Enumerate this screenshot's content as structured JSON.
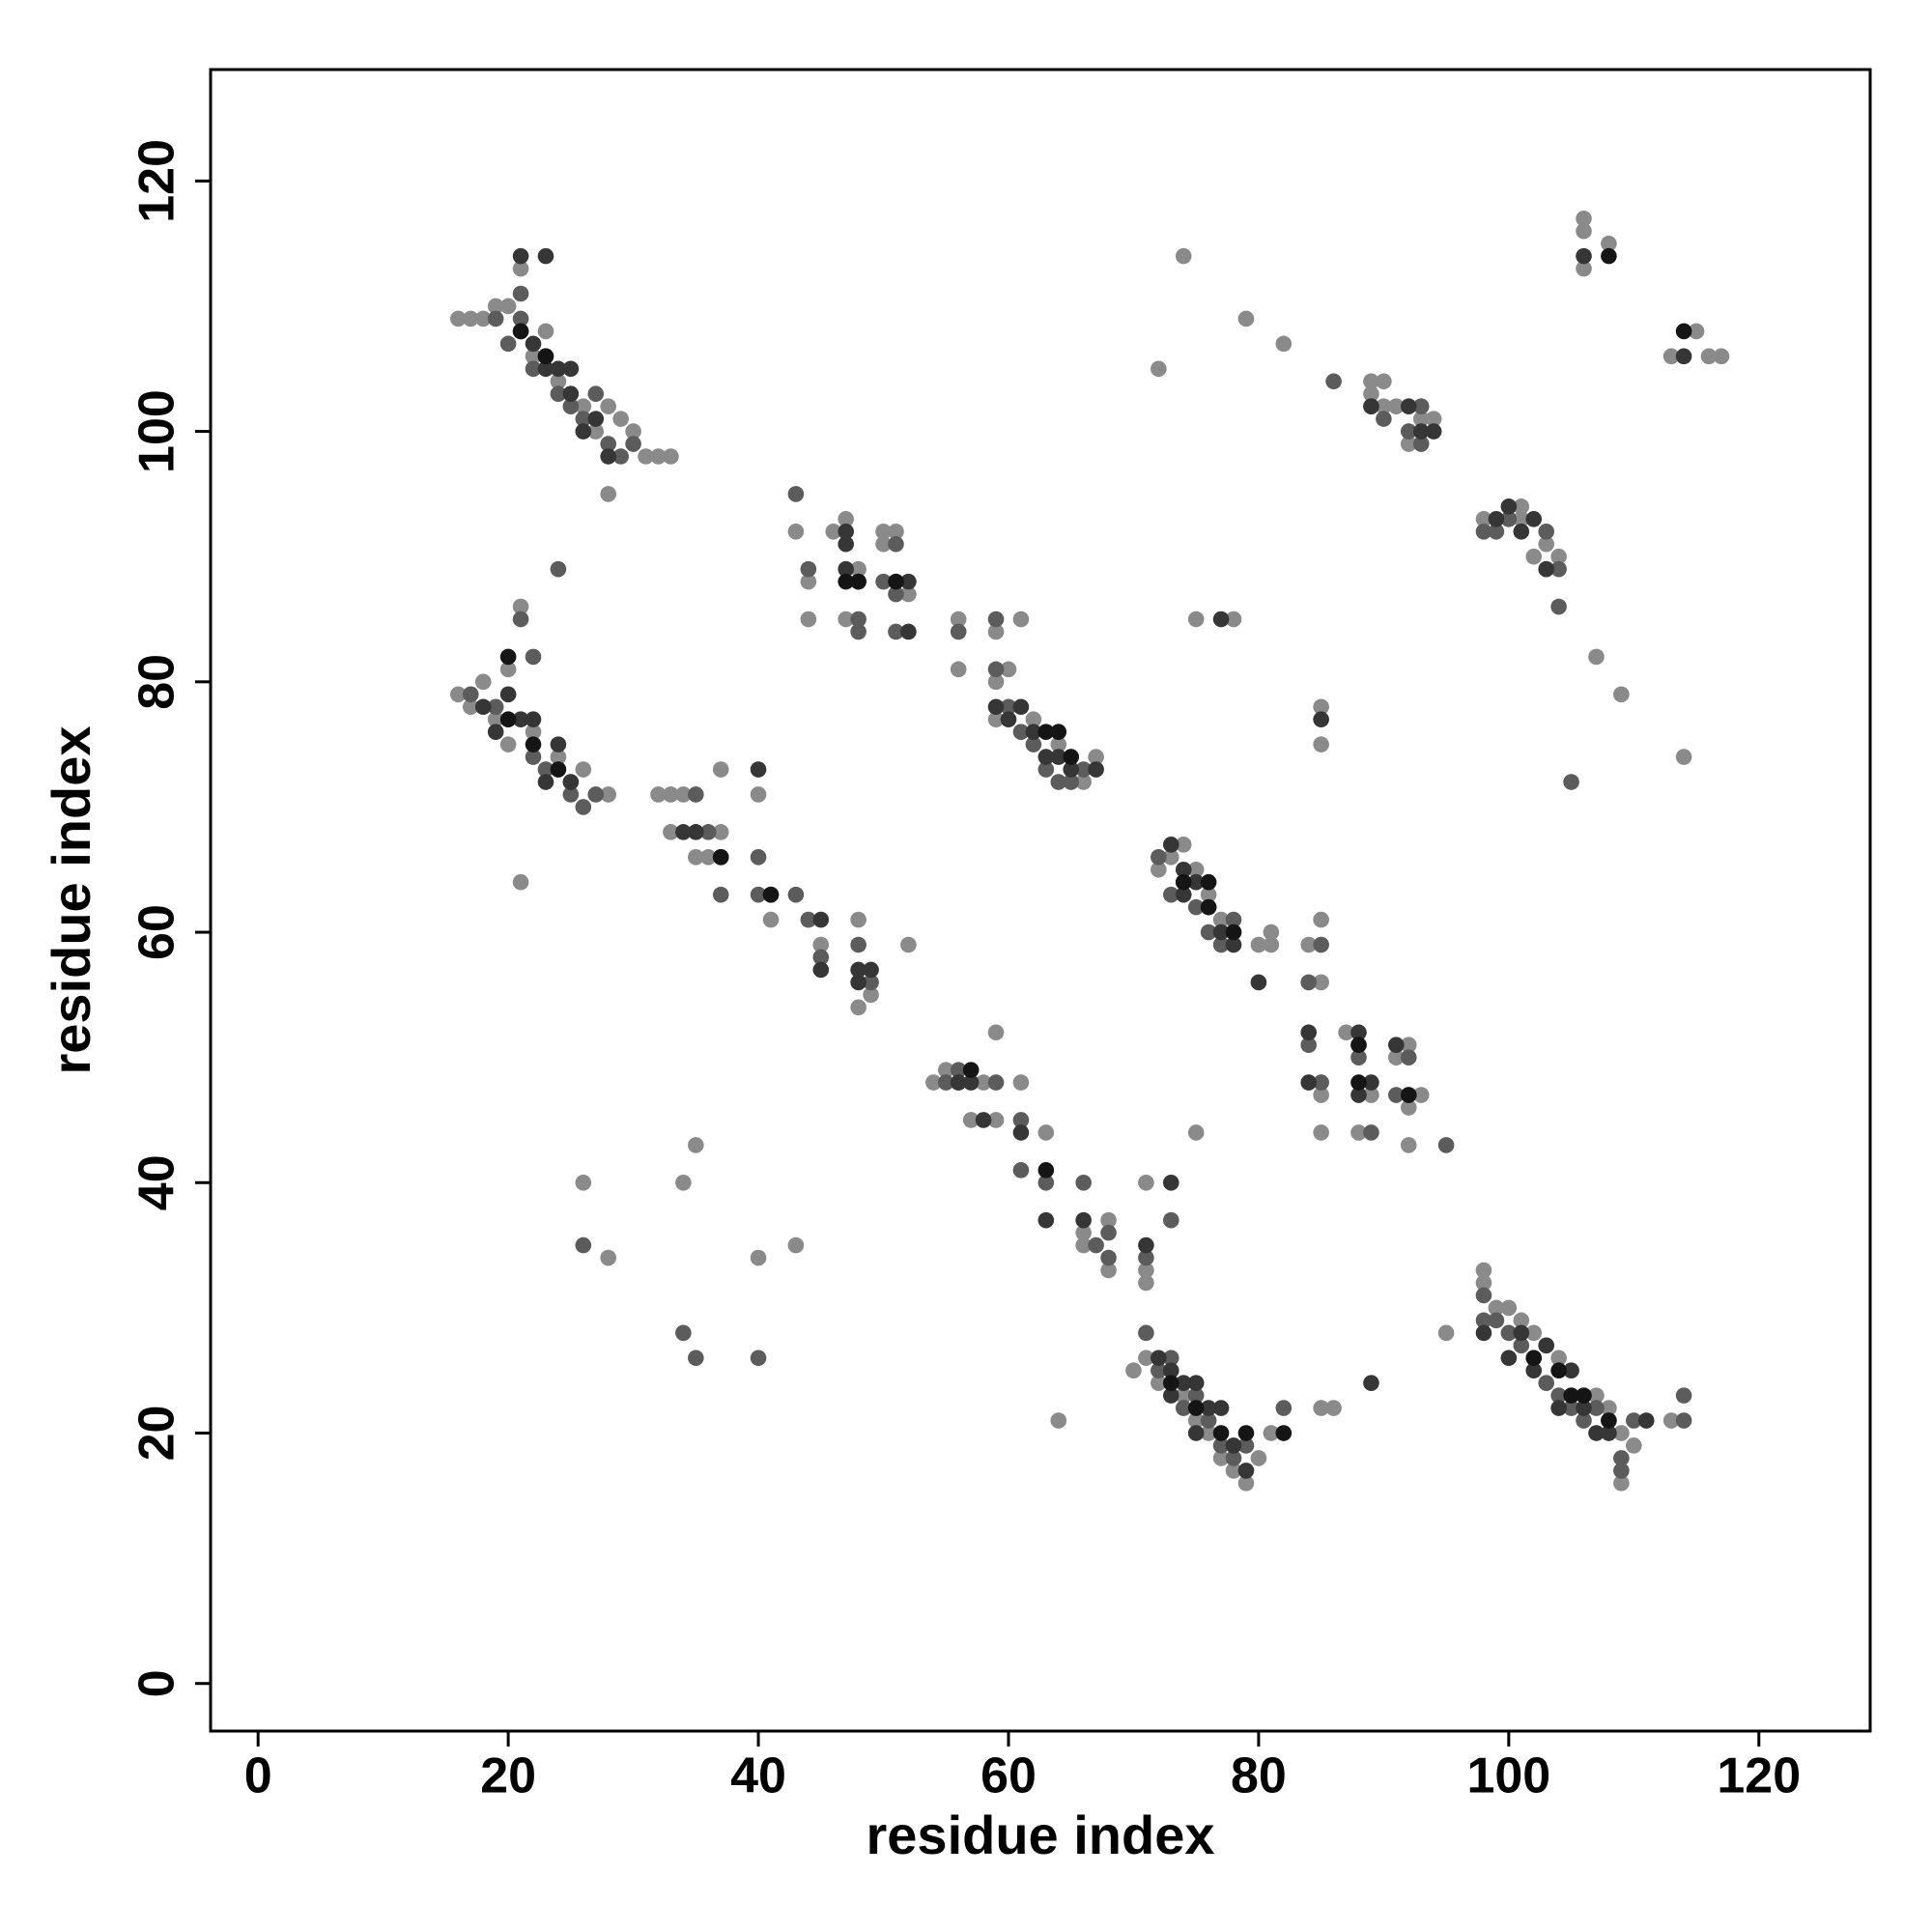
{
  "chart_data": {
    "type": "scatter",
    "xlabel": "residue index",
    "ylabel": "residue index",
    "xlim": [
      -3.8,
      128.9
    ],
    "ylim": [
      -3.8,
      128.9
    ],
    "xticks": [
      0,
      20,
      40,
      60,
      80,
      100,
      120
    ],
    "yticks": [
      0,
      20,
      40,
      60,
      80,
      100,
      120
    ],
    "grid": false,
    "series": [
      {
        "color": "#8a8a8a",
        "x": [
          16,
          17,
          18,
          19,
          20,
          21,
          22,
          23,
          24,
          26,
          27,
          28,
          29,
          30,
          31,
          32,
          33,
          28,
          16,
          17,
          18,
          19,
          20,
          20,
          21,
          22,
          24,
          25,
          26,
          28,
          21,
          32,
          33,
          34,
          33,
          35,
          36,
          37,
          37,
          40,
          41,
          45,
          48,
          48,
          49,
          52,
          43,
          44,
          46,
          47,
          47,
          48,
          50,
          50,
          51,
          52,
          44,
          56,
          56,
          59,
          59,
          60,
          61,
          59,
          62,
          64,
          65,
          66,
          67,
          54,
          55,
          56,
          57,
          57,
          58,
          59,
          59,
          61,
          63,
          66,
          66,
          68,
          68,
          71,
          71,
          71,
          70,
          71,
          72,
          74,
          75,
          76,
          77,
          78,
          79,
          80,
          81,
          64,
          72,
          73,
          74,
          75,
          76,
          77,
          78,
          80,
          81,
          81,
          84,
          85,
          85,
          85,
          87,
          88,
          89,
          91,
          92,
          92,
          92,
          93,
          85,
          89,
          90,
          89,
          90,
          91,
          92,
          93,
          94,
          98,
          101,
          101,
          102,
          103,
          103,
          104,
          107,
          109,
          98,
          98,
          99,
          100,
          101,
          102,
          103,
          104,
          106,
          107,
          108,
          109,
          109,
          110,
          113,
          95,
          72,
          74,
          75,
          78,
          79,
          82,
          85,
          85,
          106,
          106,
          106,
          108,
          113,
          115,
          116,
          117,
          114,
          26,
          28,
          34,
          35,
          40,
          43,
          85,
          86,
          75
        ],
        "values": [
          109,
          109,
          109,
          110,
          110,
          113,
          106,
          108,
          104,
          102,
          100,
          102,
          101,
          100,
          98,
          98,
          98,
          95,
          79,
          78,
          80,
          77,
          75,
          81,
          86,
          76,
          74,
          72,
          73,
          71,
          64,
          71,
          71,
          71,
          68,
          66,
          66,
          68,
          73,
          71,
          61,
          59,
          61,
          54,
          55,
          59,
          92,
          85,
          92,
          93,
          85,
          89,
          92,
          91,
          92,
          87,
          88,
          85,
          81,
          84,
          80,
          81,
          85,
          77,
          77,
          75,
          74,
          72,
          74,
          48,
          49,
          48,
          49,
          45,
          48,
          52,
          45,
          48,
          44,
          35,
          36,
          37,
          33,
          32,
          33,
          40,
          25,
          26,
          24,
          23,
          21,
          20,
          18,
          17,
          16,
          18,
          20,
          21,
          65,
          66,
          67,
          65,
          63,
          61,
          60,
          59,
          60,
          59,
          59,
          56,
          61,
          44,
          52,
          44,
          47,
          50,
          51,
          46,
          43,
          47,
          47,
          104,
          104,
          103,
          102,
          102,
          99,
          101,
          101,
          93,
          93,
          94,
          90,
          91,
          89,
          90,
          82,
          79,
          33,
          32,
          30,
          30,
          29,
          28,
          27,
          26,
          23,
          23,
          22,
          16,
          20,
          19,
          21,
          28,
          105,
          114,
          85,
          85,
          109,
          107,
          78,
          75,
          117,
          116,
          113,
          115,
          106,
          108,
          106,
          106,
          74,
          40,
          34,
          40,
          43,
          34,
          35,
          22,
          22,
          44
        ]
      },
      {
        "color": "#5c5c5c",
        "x": [
          19,
          20,
          21,
          21,
          22,
          24,
          25,
          26,
          27,
          28,
          29,
          30,
          17,
          19,
          21,
          22,
          22,
          23,
          24,
          25,
          26,
          27,
          35,
          36,
          37,
          40,
          40,
          43,
          44,
          45,
          48,
          49,
          43,
          44,
          48,
          48,
          50,
          51,
          51,
          51,
          56,
          59,
          59,
          60,
          61,
          62,
          63,
          64,
          65,
          66,
          55,
          56,
          59,
          61,
          61,
          63,
          66,
          67,
          68,
          68,
          71,
          73,
          71,
          72,
          73,
          74,
          75,
          76,
          77,
          78,
          79,
          82,
          72,
          73,
          74,
          75,
          76,
          77,
          78,
          84,
          85,
          84,
          85,
          88,
          88,
          89,
          91,
          92,
          95,
          89,
          90,
          92,
          93,
          93,
          86,
          98,
          99,
          100,
          103,
          104,
          104,
          105,
          98,
          98,
          99,
          100,
          101,
          102,
          103,
          104,
          105,
          106,
          107,
          108,
          109,
          109,
          110,
          114,
          114,
          34,
          35,
          40,
          26
        ],
        "values": [
          109,
          107,
          111,
          109,
          105,
          103,
          102,
          101,
          103,
          99,
          98,
          99,
          79,
          78,
          85,
          82,
          74,
          73,
          89,
          71,
          70,
          71,
          71,
          68,
          63,
          66,
          63,
          63,
          61,
          58,
          59,
          56,
          95,
          89,
          85,
          84,
          88,
          91,
          87,
          84,
          84,
          85,
          81,
          78,
          76,
          75,
          73,
          72,
          72,
          73,
          48,
          49,
          48,
          45,
          41,
          40,
          40,
          35,
          36,
          34,
          34,
          37,
          28,
          25,
          26,
          22,
          23,
          21,
          19,
          18,
          19,
          22,
          66,
          63,
          64,
          62,
          60,
          59,
          61,
          56,
          59,
          51,
          48,
          50,
          51,
          44,
          47,
          50,
          43,
          102,
          101,
          100,
          102,
          99,
          104,
          92,
          92,
          93,
          92,
          89,
          86,
          72,
          31,
          29,
          29,
          28,
          27,
          26,
          24,
          23,
          22,
          21,
          22,
          21,
          18,
          17,
          21,
          23,
          21,
          28,
          26,
          26,
          35
        ]
      },
      {
        "color": "#363636",
        "x": [
          21,
          22,
          23,
          23,
          24,
          25,
          25,
          26,
          27,
          28,
          21,
          23,
          18,
          19,
          20,
          21,
          22,
          23,
          24,
          25,
          34,
          35,
          37,
          40,
          41,
          45,
          45,
          48,
          48,
          49,
          47,
          47,
          47,
          52,
          52,
          48,
          59,
          60,
          61,
          62,
          63,
          64,
          65,
          67,
          56,
          57,
          58,
          61,
          63,
          66,
          71,
          73,
          72,
          73,
          74,
          75,
          76,
          77,
          78,
          79,
          73,
          75,
          73,
          74,
          74,
          75,
          76,
          77,
          78,
          80,
          84,
          84,
          88,
          88,
          91,
          92,
          89,
          89,
          92,
          93,
          94,
          99,
          100,
          101,
          102,
          103,
          98,
          100,
          101,
          102,
          103,
          104,
          105,
          106,
          107,
          108,
          111,
          89,
          77,
          85,
          106,
          114
        ],
        "values": [
          108,
          107,
          106,
          105,
          105,
          103,
          105,
          100,
          101,
          98,
          114,
          114,
          78,
          76,
          79,
          77,
          77,
          72,
          75,
          72,
          68,
          68,
          66,
          73,
          63,
          61,
          57,
          57,
          56,
          57,
          92,
          91,
          89,
          88,
          84,
          88,
          78,
          77,
          78,
          76,
          74,
          74,
          73,
          73,
          48,
          48,
          45,
          44,
          37,
          37,
          35,
          40,
          26,
          25,
          24,
          24,
          22,
          22,
          19,
          17,
          23,
          20,
          67,
          65,
          63,
          64,
          62,
          60,
          59,
          56,
          52,
          48,
          52,
          47,
          51,
          47,
          48,
          102,
          102,
          100,
          100,
          93,
          94,
          92,
          93,
          89,
          28,
          26,
          28,
          25,
          27,
          22,
          25,
          22,
          20,
          20,
          21,
          24,
          85,
          77,
          114,
          106
        ]
      },
      {
        "color": "#151515",
        "x": [
          21,
          23,
          20,
          20,
          22,
          24,
          37,
          41,
          47,
          48,
          51,
          63,
          64,
          65,
          57,
          63,
          73,
          75,
          77,
          79,
          82,
          74,
          76,
          76,
          78,
          88,
          88,
          92,
          102,
          104,
          105,
          106,
          108,
          108,
          114
        ],
        "values": [
          108,
          106,
          82,
          77,
          75,
          73,
          66,
          63,
          88,
          88,
          88,
          76,
          76,
          74,
          49,
          41,
          24,
          22,
          20,
          20,
          20,
          64,
          62,
          64,
          60,
          48,
          51,
          47,
          26,
          25,
          23,
          23,
          21,
          114,
          108
        ]
      }
    ]
  }
}
